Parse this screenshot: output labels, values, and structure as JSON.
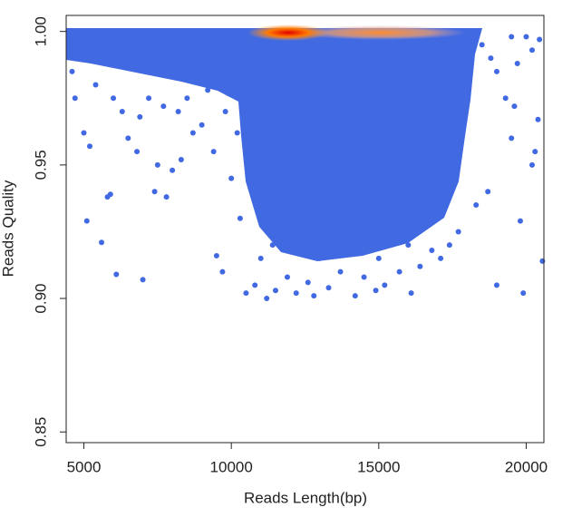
{
  "chart_data": {
    "type": "scatter",
    "x_label": "Reads Length(bp)",
    "y_label": "Reads Quality",
    "xlim": [
      4400,
      20600
    ],
    "ylim": [
      0.846,
      1.006
    ],
    "xticks": [
      5000,
      10000,
      15000,
      20000
    ],
    "yticks": [
      {
        "value": 0.85,
        "label": "0.85"
      },
      {
        "value": 0.9,
        "label": "0.90"
      },
      {
        "value": 0.95,
        "label": "0.95"
      },
      {
        "value": 1.0,
        "label": "1.00"
      }
    ],
    "grid": false,
    "x": [
      4600,
      4700,
      5000,
      5200,
      5100,
      5600,
      5800,
      5900,
      6100,
      7000,
      7400,
      7800,
      6500,
      6800,
      7500,
      8000,
      8300,
      8700,
      9000,
      9400,
      9500,
      9700,
      5400,
      6000,
      6300,
      6900,
      7200,
      7700,
      8200,
      8500,
      9200,
      9800,
      10200,
      10000,
      10300,
      10500,
      10800,
      11200,
      11500,
      11900,
      12200,
      12600,
      12800,
      13300,
      13700,
      14200,
      14500,
      14900,
      15200,
      15700,
      16100,
      16400,
      16800,
      17100,
      17400,
      17700,
      11000,
      11400,
      12000,
      13000,
      13500,
      14000,
      15000,
      15500,
      16000,
      18500,
      18800,
      19000,
      19300,
      19500,
      19600,
      19800,
      19900,
      19700,
      20000,
      20200,
      20300,
      20200,
      20400,
      20550,
      19000,
      18700,
      18300,
      19500,
      20450
    ],
    "series": [
      {
        "color": "#4169e1",
        "values": [
          0.985,
          0.975,
          0.962,
          0.957,
          0.929,
          0.921,
          0.938,
          0.939,
          0.909,
          0.907,
          0.94,
          0.938,
          0.96,
          0.955,
          0.95,
          0.948,
          0.952,
          0.962,
          0.965,
          0.955,
          0.916,
          0.91,
          0.98,
          0.975,
          0.97,
          0.968,
          0.975,
          0.972,
          0.97,
          0.975,
          0.978,
          0.97,
          0.962,
          0.945,
          0.93,
          0.902,
          0.905,
          0.9,
          0.903,
          0.908,
          0.902,
          0.906,
          0.901,
          0.904,
          0.91,
          0.901,
          0.908,
          0.903,
          0.905,
          0.91,
          0.902,
          0.912,
          0.918,
          0.915,
          0.92,
          0.925,
          0.915,
          0.92,
          0.918,
          0.915,
          0.92,
          0.918,
          0.915,
          0.922,
          0.92,
          0.995,
          0.99,
          0.985,
          0.975,
          0.96,
          0.972,
          0.929,
          0.902,
          0.988,
          0.998,
          0.993,
          0.955,
          0.95,
          0.967,
          0.914,
          0.905,
          0.94,
          0.935,
          0.998,
          0.997
        ]
      }
    ]
  }
}
